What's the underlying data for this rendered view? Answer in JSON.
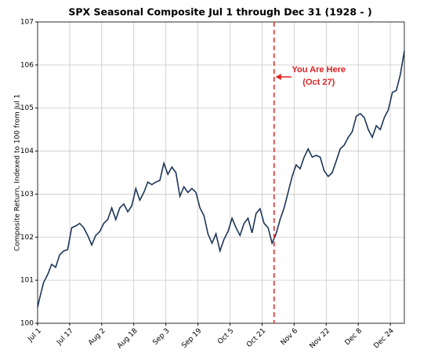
{
  "chart_data": {
    "type": "line",
    "title": "SPX Seasonal Composite Jul 1 through Dec 31 (1928 - )",
    "ylabel": "Composite Return, Indexed to 100 from Jul 1",
    "x": [
      0,
      1,
      3,
      5,
      7,
      9,
      11,
      13,
      15,
      17,
      19,
      21,
      23,
      25,
      27,
      29,
      31,
      33,
      35,
      37,
      39,
      41,
      43,
      45,
      47,
      49,
      51,
      53,
      55,
      57,
      59,
      61,
      63,
      65,
      67,
      69,
      71,
      73,
      75,
      77,
      79,
      81,
      83,
      85,
      87,
      89,
      91,
      93,
      95,
      97,
      99,
      101,
      103,
      105,
      107,
      109,
      111,
      113,
      115,
      117,
      119,
      121,
      123,
      125,
      127,
      129,
      131,
      133,
      135,
      137,
      139,
      141,
      143,
      145,
      147,
      149,
      151,
      153,
      155,
      157,
      159,
      161,
      163,
      165,
      167,
      169,
      171,
      173,
      175,
      177,
      179,
      181,
      183
    ],
    "series": [
      {
        "name": "SPX",
        "color": "#1c3557",
        "values": [
          100.37,
          100.58,
          100.95,
          101.13,
          101.37,
          101.3,
          101.59,
          101.68,
          101.71,
          102.22,
          102.26,
          102.32,
          102.22,
          102.04,
          101.82,
          102.04,
          102.13,
          102.32,
          102.41,
          102.68,
          102.41,
          102.68,
          102.77,
          102.59,
          102.73,
          103.13,
          102.86,
          103.04,
          103.28,
          103.22,
          103.28,
          103.32,
          103.72,
          103.46,
          103.63,
          103.5,
          102.95,
          103.17,
          103.04,
          103.13,
          103.04,
          102.68,
          102.5,
          102.08,
          101.86,
          102.08,
          101.68,
          101.95,
          102.13,
          102.44,
          102.22,
          102.04,
          102.32,
          102.44,
          102.1,
          102.55,
          102.66,
          102.32,
          102.22,
          101.86,
          102.08,
          102.41,
          102.68,
          103.04,
          103.41,
          103.68,
          103.59,
          103.86,
          104.05,
          103.86,
          103.9,
          103.86,
          103.54,
          103.41,
          103.5,
          103.77,
          104.05,
          104.14,
          104.32,
          104.45,
          104.81,
          104.87,
          104.78,
          104.5,
          104.32,
          104.59,
          104.5,
          104.78,
          104.96,
          105.36,
          105.41,
          105.78,
          106.33
        ]
      }
    ],
    "xlim": [
      0,
      183
    ],
    "xticks": [
      {
        "value": 0,
        "label": "Jul 1"
      },
      {
        "value": 16,
        "label": "Jul 17"
      },
      {
        "value": 32,
        "label": "Aug 2"
      },
      {
        "value": 48,
        "label": "Aug 18"
      },
      {
        "value": 64,
        "label": "Sep 3"
      },
      {
        "value": 80,
        "label": "Sep 19"
      },
      {
        "value": 96,
        "label": "Oct 5"
      },
      {
        "value": 112,
        "label": "Oct 21"
      },
      {
        "value": 128,
        "label": "Nov 6"
      },
      {
        "value": 144,
        "label": "Nov 22"
      },
      {
        "value": 160,
        "label": "Dec 8"
      },
      {
        "value": 176,
        "label": "Dec 24"
      }
    ],
    "ylim": [
      100,
      107
    ],
    "yticks": [
      100,
      101,
      102,
      103,
      104,
      105,
      106,
      107
    ],
    "grid": true,
    "annotation": {
      "x": 118,
      "color": "#e02020",
      "lines": [
        "You Are Here",
        "(Oct 27)"
      ]
    }
  }
}
